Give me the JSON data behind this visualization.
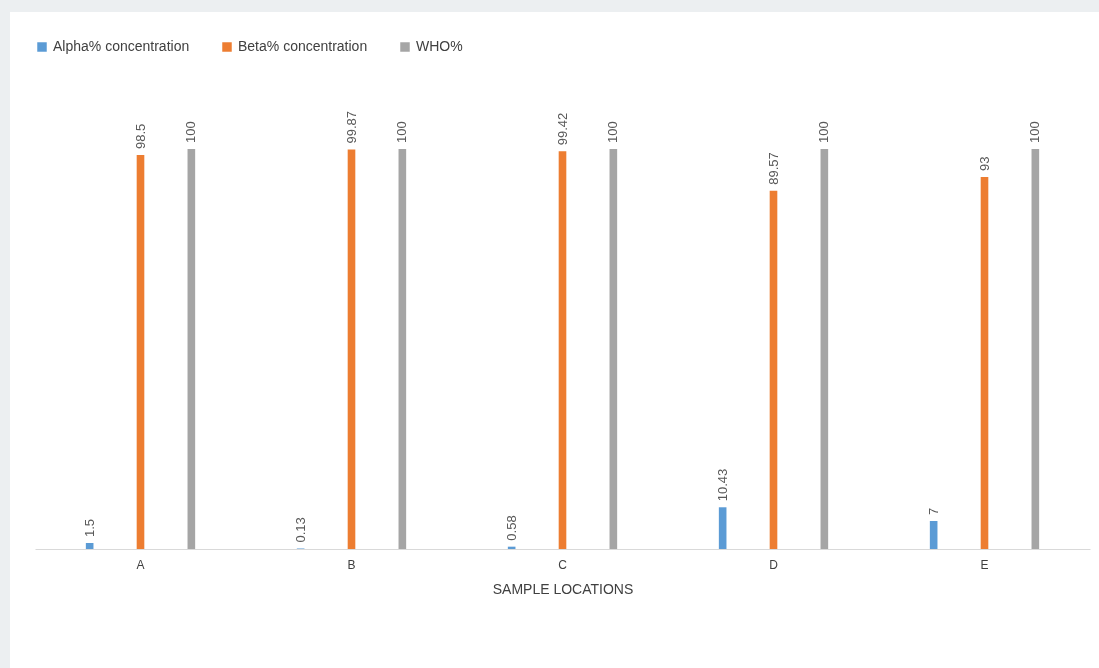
{
  "chart_data": {
    "type": "bar",
    "xlabel": "SAMPLE LOCATIONS",
    "categories": [
      "A",
      "B",
      "C",
      "D",
      "E"
    ],
    "series": [
      {
        "name": "Alpha% concentration",
        "color": "#5b9bd5",
        "values": [
          1.5,
          0.13,
          0.58,
          10.43,
          7
        ]
      },
      {
        "name": "Beta% concentration",
        "color": "#ed7d31",
        "values": [
          98.5,
          99.87,
          99.42,
          89.57,
          93
        ]
      },
      {
        "name": "WHO%",
        "color": "#a5a5a5",
        "values": [
          100,
          100,
          100,
          100,
          100
        ]
      }
    ],
    "data_labels": true,
    "legend": "top",
    "grid": false
  }
}
